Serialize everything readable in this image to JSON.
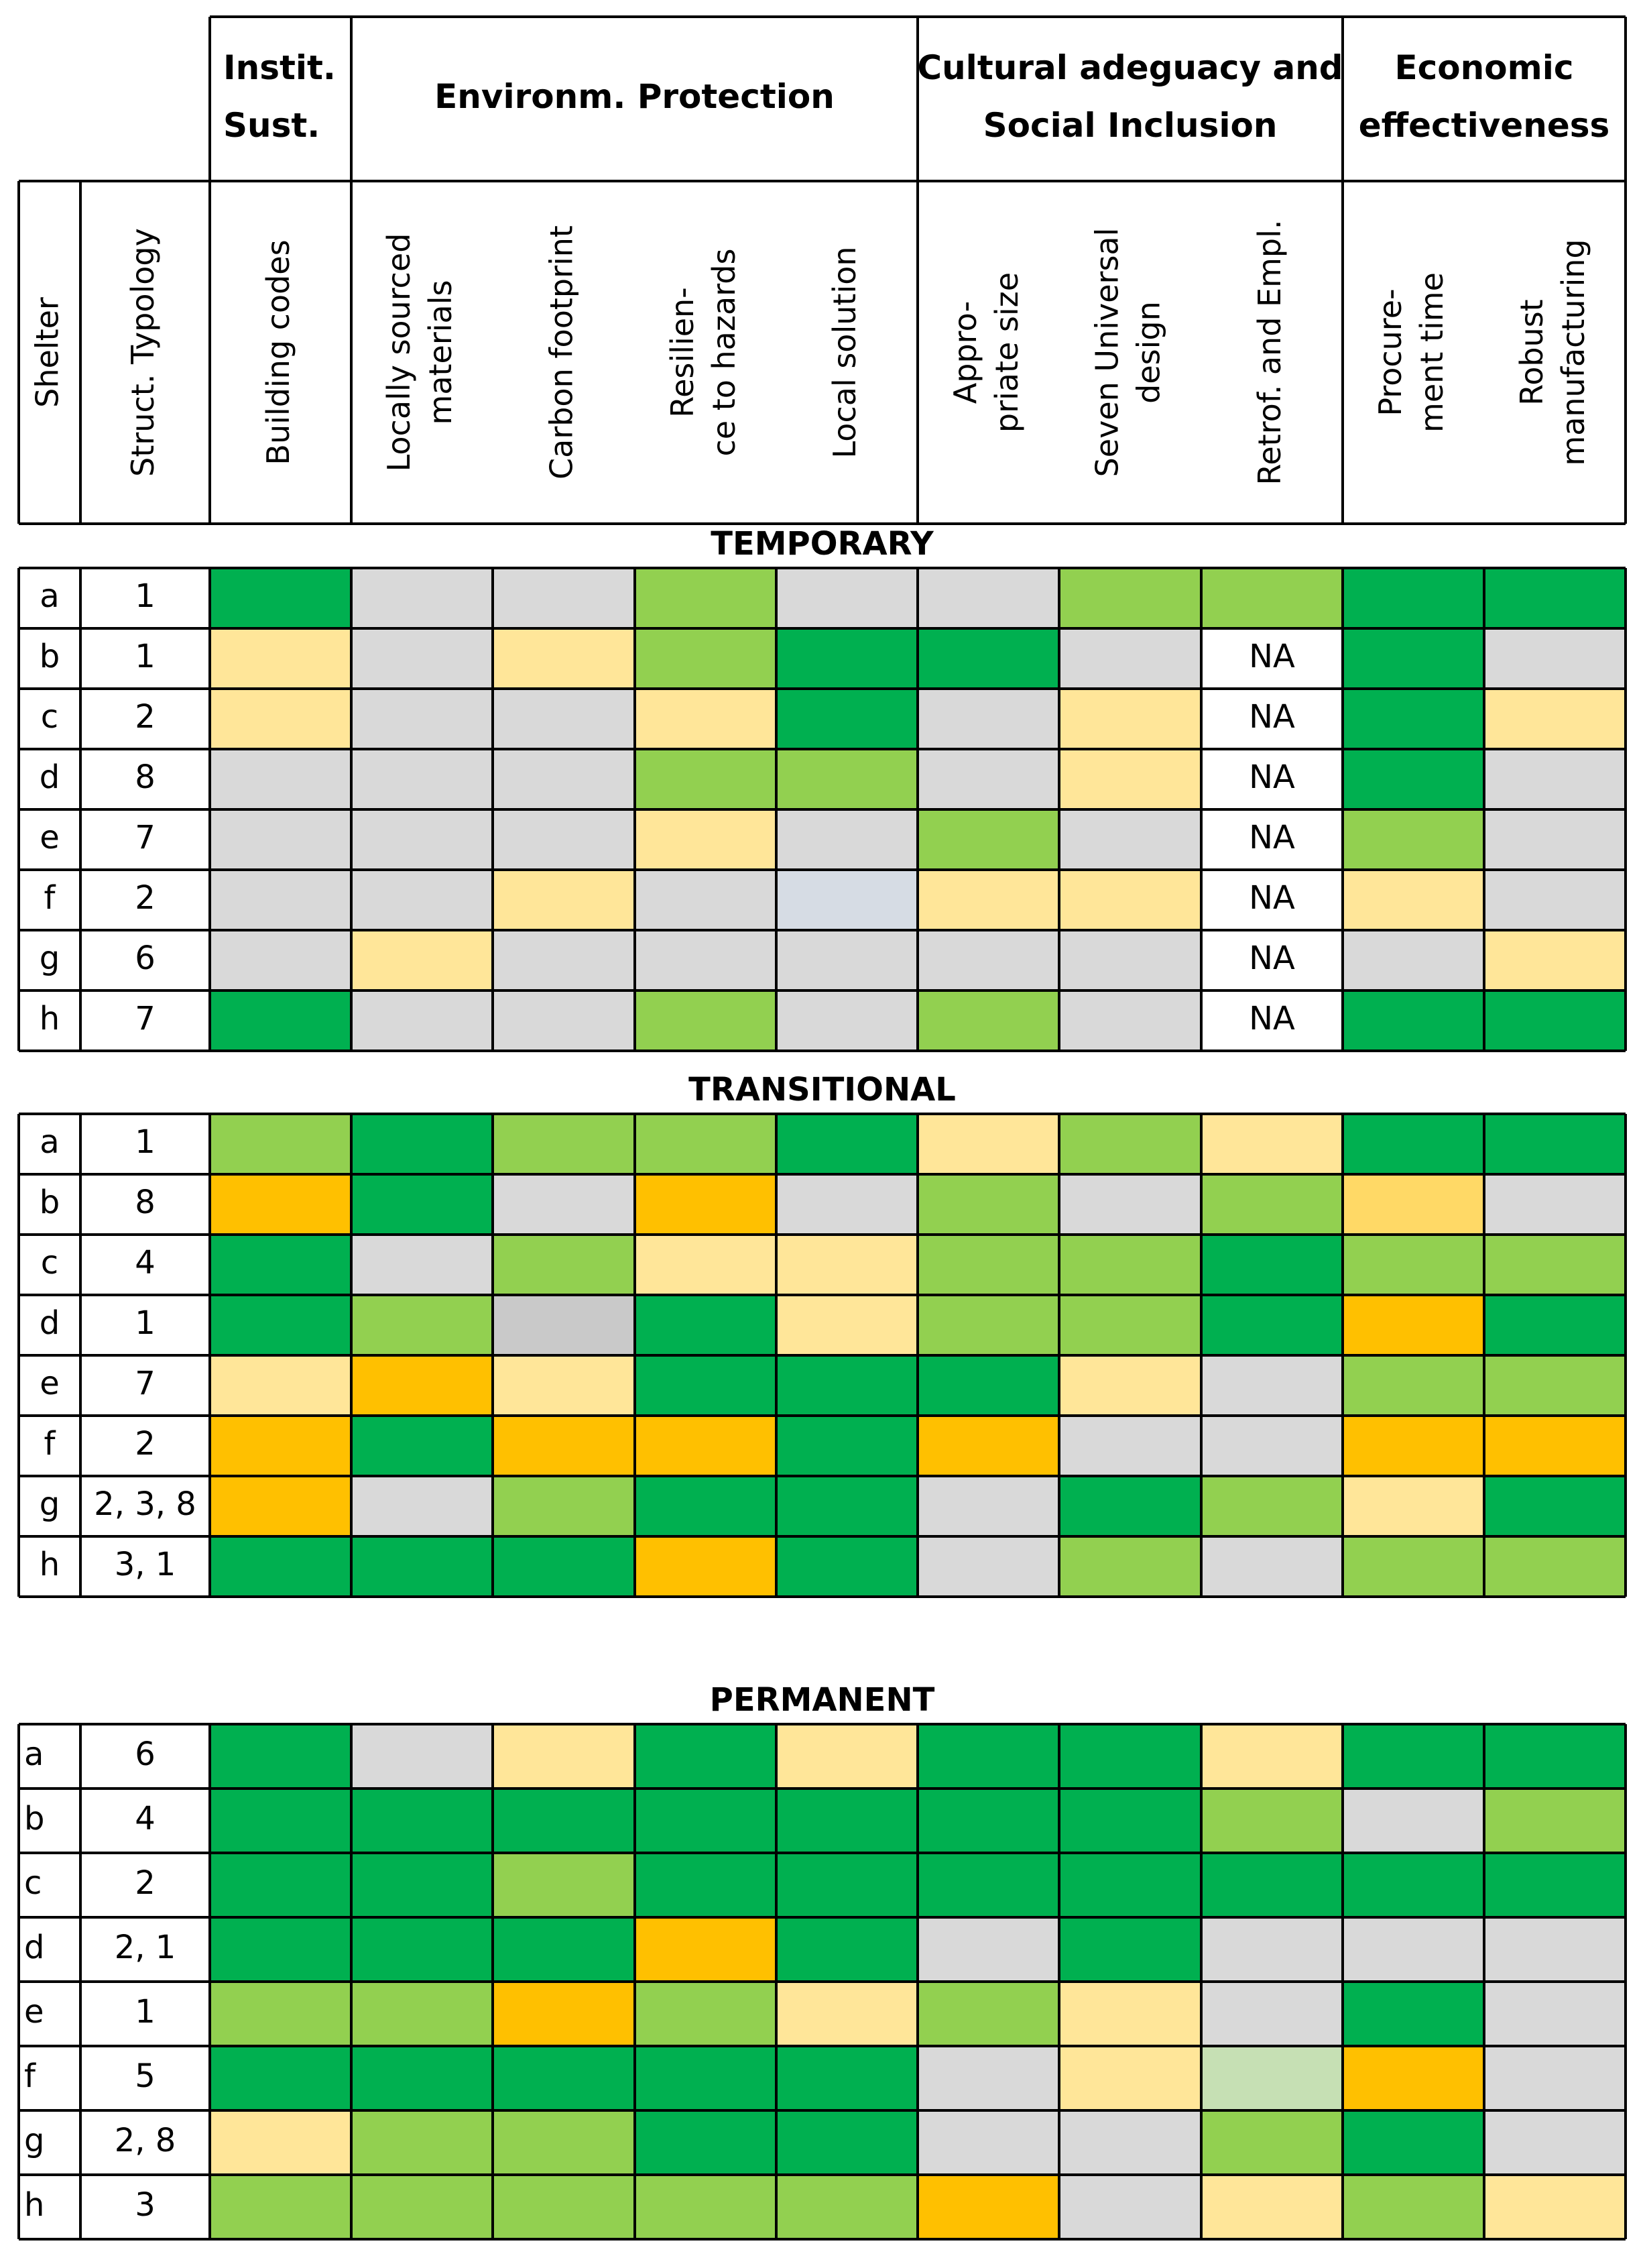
{
  "chart_data": {
    "type": "heatmap",
    "group_headers": [
      {
        "lines": [
          "Instit.",
          "Sust."
        ]
      },
      {
        "lines": [
          "Environm. Protection"
        ]
      },
      {
        "lines": [
          "Cultural adeguacy and",
          "Social Inclusion"
        ]
      },
      {
        "lines": [
          "Economic",
          "effectiveness"
        ]
      }
    ],
    "row_headers": [
      {
        "lines": [
          "Shelter"
        ]
      },
      {
        "lines": [
          "Struct. Typology"
        ]
      }
    ],
    "columns": [
      {
        "lines": [
          "Building codes"
        ]
      },
      {
        "lines": [
          "Locally sourced",
          "materials"
        ]
      },
      {
        "lines": [
          "Carbon footprint"
        ]
      },
      {
        "lines": [
          "Resilien-",
          "ce to hazards"
        ]
      },
      {
        "lines": [
          "Local solution"
        ]
      },
      {
        "lines": [
          "Appro-",
          "priate size"
        ]
      },
      {
        "lines": [
          "Seven Universal",
          "design"
        ]
      },
      {
        "lines": [
          "Retrof. and Empl."
        ]
      },
      {
        "lines": [
          "Procure-",
          "ment time"
        ]
      },
      {
        "lines": [
          "Robust",
          "manufacturing"
        ]
      }
    ],
    "palette": {
      "D": "#00b050",
      "L": "#92d050",
      "Y": "#ffe699",
      "O": "#ffc000",
      "G": "#d9d9d9",
      "W": "#ffffff",
      "B": "#d6dce4",
      "K": "#c9c9c9",
      "P": "#c6e0b4",
      "Q": "#ffd966"
    },
    "sections": [
      {
        "title": "TEMPORARY",
        "rows": [
          {
            "shelter": "a",
            "typology": "1",
            "cells": [
              "D",
              "G",
              "G",
              "L",
              "G",
              "G",
              "L",
              "L",
              "D",
              "D"
            ]
          },
          {
            "shelter": "b",
            "typology": "1",
            "cells": [
              "Y",
              "G",
              "Y",
              "L",
              "D",
              "D",
              "G",
              "NA",
              "D",
              "G"
            ]
          },
          {
            "shelter": "c",
            "typology": "2",
            "cells": [
              "Y",
              "G",
              "G",
              "Y",
              "D",
              "G",
              "Y",
              "NA",
              "D",
              "Y"
            ]
          },
          {
            "shelter": "d",
            "typology": "8",
            "cells": [
              "G",
              "G",
              "G",
              "L",
              "L",
              "G",
              "Y",
              "NA",
              "D",
              "G"
            ]
          },
          {
            "shelter": "e",
            "typology": "7",
            "cells": [
              "G",
              "G",
              "G",
              "Y",
              "G",
              "L",
              "G",
              "NA",
              "L",
              "G"
            ]
          },
          {
            "shelter": "f",
            "typology": "2",
            "cells": [
              "G",
              "G",
              "Y",
              "G",
              "B",
              "Y",
              "Y",
              "NA",
              "Y",
              "G"
            ]
          },
          {
            "shelter": "g",
            "typology": "6",
            "cells": [
              "G",
              "Y",
              "G",
              "G",
              "G",
              "G",
              "G",
              "NA",
              "G",
              "Y"
            ]
          },
          {
            "shelter": "h",
            "typology": "7",
            "cells": [
              "D",
              "G",
              "G",
              "L",
              "G",
              "L",
              "G",
              "NA",
              "D",
              "D"
            ]
          }
        ]
      },
      {
        "title": "TRANSITIONAL",
        "rows": [
          {
            "shelter": "a",
            "typology": "1",
            "cells": [
              "L",
              "D",
              "L",
              "L",
              "D",
              "Y",
              "L",
              "Y",
              "D",
              "D"
            ]
          },
          {
            "shelter": "b",
            "typology": "8",
            "cells": [
              "O",
              "D",
              "G",
              "O",
              "G",
              "L",
              "G",
              "L",
              "Q",
              "G"
            ]
          },
          {
            "shelter": "c",
            "typology": "4",
            "cells": [
              "D",
              "G",
              "L",
              "Y",
              "Y",
              "L",
              "L",
              "D",
              "L",
              "L"
            ]
          },
          {
            "shelter": "d",
            "typology": "1",
            "cells": [
              "D",
              "L",
              "K",
              "D",
              "Y",
              "L",
              "L",
              "D",
              "O",
              "D"
            ]
          },
          {
            "shelter": "e",
            "typology": "7",
            "cells": [
              "Y",
              "O",
              "Y",
              "D",
              "D",
              "D",
              "Y",
              "G",
              "L",
              "L"
            ]
          },
          {
            "shelter": "f",
            "typology": "2",
            "cells": [
              "O",
              "D",
              "O",
              "O",
              "D",
              "O",
              "G",
              "G",
              "O",
              "O"
            ]
          },
          {
            "shelter": "g",
            "typology": "2, 3, 8",
            "cells": [
              "O",
              "G",
              "L",
              "D",
              "D",
              "G",
              "D",
              "L",
              "Y",
              "D"
            ]
          },
          {
            "shelter": "h",
            "typology": "3, 1",
            "cells": [
              "D",
              "D",
              "D",
              "O",
              "D",
              "G",
              "L",
              "G",
              "L",
              "L"
            ]
          }
        ]
      },
      {
        "title": "PERMANENT",
        "rows": [
          {
            "shelter": "a",
            "typology": "6",
            "cells": [
              "D",
              "G",
              "Y",
              "D",
              "Y",
              "D",
              "D",
              "Y",
              "D",
              "D"
            ]
          },
          {
            "shelter": "b",
            "typology": "4",
            "cells": [
              "D",
              "D",
              "D",
              "D",
              "D",
              "D",
              "D",
              "L",
              "G",
              "L"
            ]
          },
          {
            "shelter": "c",
            "typology": "2",
            "cells": [
              "D",
              "D",
              "L",
              "D",
              "D",
              "D",
              "D",
              "D",
              "D",
              "D"
            ]
          },
          {
            "shelter": "d",
            "typology": "2, 1",
            "cells": [
              "D",
              "D",
              "D",
              "O",
              "D",
              "G",
              "D",
              "G",
              "G",
              "G"
            ]
          },
          {
            "shelter": "e",
            "typology": "1",
            "cells": [
              "L",
              "L",
              "O",
              "L",
              "Y",
              "L",
              "Y",
              "G",
              "D",
              "G"
            ]
          },
          {
            "shelter": "f",
            "typology": "5",
            "cells": [
              "D",
              "D",
              "D",
              "D",
              "D",
              "G",
              "Y",
              "P",
              "O",
              "G"
            ]
          },
          {
            "shelter": "g",
            "typology": "2, 8",
            "cells": [
              "Y",
              "L",
              "L",
              "D",
              "D",
              "G",
              "G",
              "L",
              "D",
              "G"
            ]
          },
          {
            "shelter": "h",
            "typology": "3",
            "cells": [
              "L",
              "L",
              "L",
              "L",
              "L",
              "O",
              "G",
              "Y",
              "L",
              "Y"
            ]
          }
        ]
      }
    ]
  }
}
